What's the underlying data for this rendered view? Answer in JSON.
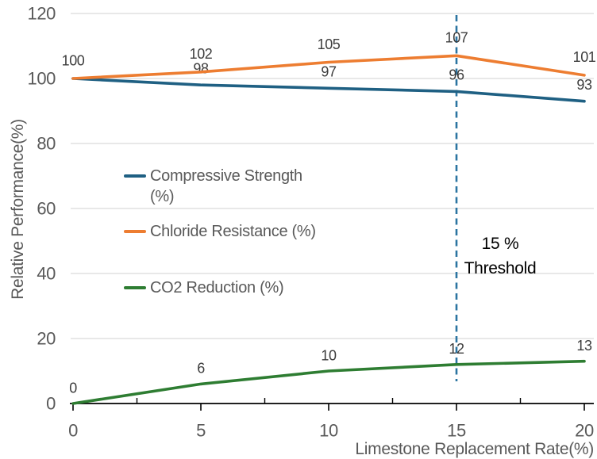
{
  "chart_data": {
    "type": "line",
    "title": "",
    "xlabel": "Limestone Replacement Rate(%)",
    "ylabel": "Relative Performance(%)",
    "x": [
      0,
      5,
      10,
      15,
      20
    ],
    "xlim": [
      0,
      20
    ],
    "ylim": [
      0,
      120
    ],
    "x_major_ticks": [
      0,
      5,
      10,
      15,
      20
    ],
    "x_minor_ticks": [
      2.5,
      7.5,
      12.5,
      17.5
    ],
    "y_ticks": [
      0,
      20,
      40,
      60,
      80,
      100,
      120
    ],
    "grid": "horizontal-only",
    "legend_position": "inside-left",
    "series": [
      {
        "name": "Compressive Strength (%)",
        "color": "#1F6083",
        "values": [
          100,
          98,
          97,
          96,
          93
        ],
        "point_labels": [
          null,
          98,
          97,
          96,
          93
        ],
        "label_offset": -21
      },
      {
        "name": "Chloride Resistance (%)",
        "color": "#ED7D31",
        "values": [
          100,
          102,
          105,
          107,
          101
        ],
        "point_labels": [
          100,
          102,
          105,
          107,
          101
        ],
        "label_offset": -23
      },
      {
        "name": "CO2 Reduction (%)",
        "color": "#2E7D32",
        "values": [
          0,
          6,
          10,
          12,
          13
        ],
        "point_labels": [
          0,
          6,
          10,
          12,
          13
        ],
        "label_offset": -20
      }
    ],
    "legend_entries": [
      {
        "lines": [
          "Compressive Strength",
          "(%)"
        ],
        "color": "#1F6083"
      },
      {
        "lines": [
          "Chloride Resistance (%)"
        ],
        "color": "#ED7D31"
      },
      {
        "lines": [
          "CO2 Reduction (%)"
        ],
        "color": "#2E7D32"
      }
    ],
    "annotation": {
      "line1": "15 %",
      "line2": "Threshold",
      "x": 15,
      "line_style": "dashed-vertical",
      "line_color": "#2B74A1"
    },
    "colors": {
      "grid": "#D9D9D9",
      "axis": "#000000",
      "tick_labels": "#595959",
      "data_labels": "#3d3d3d",
      "annotation_text": "#000000"
    }
  }
}
